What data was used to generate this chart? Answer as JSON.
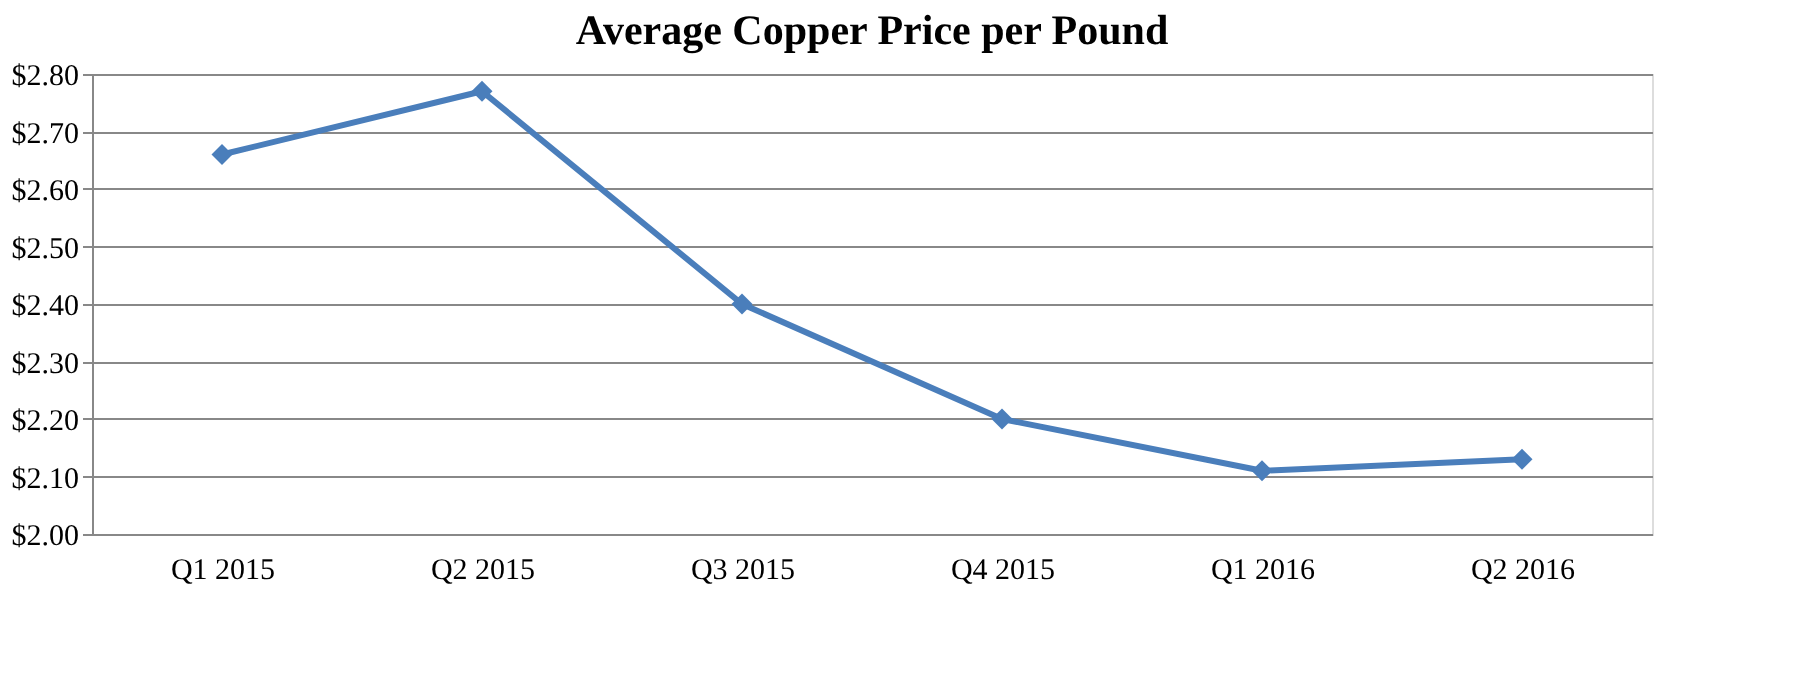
{
  "chart_data": {
    "type": "line",
    "title": "Average Copper Price per Pound",
    "categories": [
      "Q1 2015",
      "Q2 2015",
      "Q3 2015",
      "Q4 2015",
      "Q1 2016",
      "Q2 2016"
    ],
    "series": [
      {
        "color": "#4a7ebb",
        "values": [
          2.66,
          2.77,
          2.4,
          2.2,
          2.11,
          2.13
        ]
      }
    ],
    "ylim": [
      2.0,
      2.8
    ],
    "yticks": [
      {
        "value": 2.0,
        "label": "$2.00"
      },
      {
        "value": 2.1,
        "label": "$2.10"
      },
      {
        "value": 2.2,
        "label": "$2.20"
      },
      {
        "value": 2.3,
        "label": "$2.30"
      },
      {
        "value": 2.4,
        "label": "$2.40"
      },
      {
        "value": 2.5,
        "label": "$2.50"
      },
      {
        "value": 2.6,
        "label": "$2.60"
      },
      {
        "value": 2.7,
        "label": "$2.70"
      },
      {
        "value": 2.8,
        "label": "$2.80"
      }
    ],
    "grid": "y",
    "marker": "diamond",
    "line_style": "solid"
  }
}
